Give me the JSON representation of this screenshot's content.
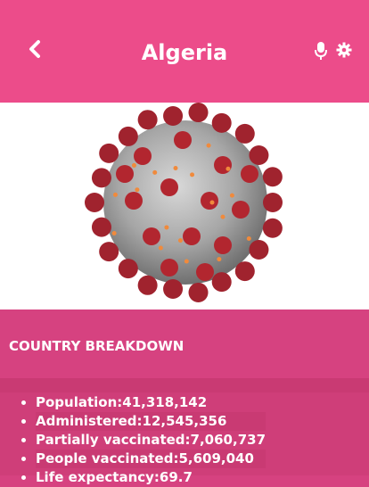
{
  "header": {
    "title": "Algeria",
    "back_icon": "chevron-left-icon",
    "mic_icon": "microphone-icon",
    "settings_icon": "gear-icon",
    "bg_color": "#ec4c8a"
  },
  "hero": {
    "image": "coronavirus-illustration"
  },
  "breakdown": {
    "title": "COUNTRY BREAKDOWN",
    "items": [
      {
        "label": "Population:",
        "value": "41,318,142"
      },
      {
        "label": "Administered:",
        "value": "12,545,356"
      },
      {
        "label": "Partially vaccinated:",
        "value": "7,060,737"
      },
      {
        "label": "People vaccinated:",
        "value": "5,609,040"
      },
      {
        "label": "Life expectancy:",
        "value": "69.7"
      }
    ]
  }
}
